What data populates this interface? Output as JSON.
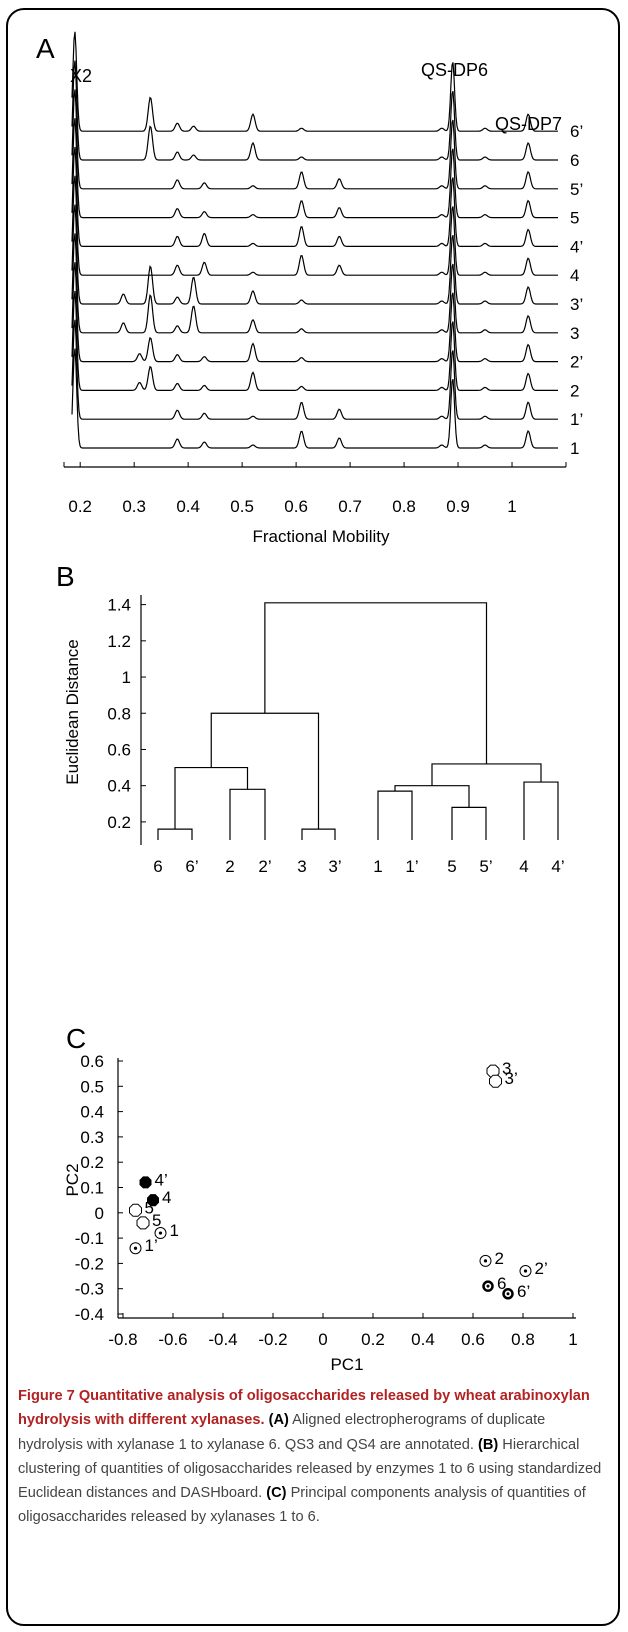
{
  "panel_a": {
    "label": "A",
    "peak_labels": {
      "x2": "X2",
      "qs_dp6": "QS-DP6",
      "qs_dp7": "QS-DP7"
    },
    "xlabel": "Fractional Mobility",
    "xticks": [
      "0.2",
      "0.3",
      "0.4",
      "0.5",
      "0.6",
      "0.7",
      "0.8",
      "0.9",
      "1"
    ]
  },
  "panel_b": {
    "label": "B",
    "ylabel": "Euclidean Distance",
    "yticks": [
      "0.2",
      "0.4",
      "0.6",
      "0.8",
      "1",
      "1.2",
      "1.4"
    ],
    "leaves": [
      "6",
      "6’",
      "2",
      "2’",
      "3",
      "3’",
      "1",
      "1’",
      "5",
      "5’",
      "4",
      "4’"
    ]
  },
  "panel_c": {
    "label": "C",
    "xlabel": "PC1",
    "ylabel": "PC2",
    "xticks": [
      "-0.8",
      "-0.6",
      "-0.4",
      "-0.2",
      "0",
      "0.2",
      "0.4",
      "0.6",
      "0.8",
      "1"
    ],
    "yticks": [
      "0.6",
      "0.5",
      "0.4",
      "0.3",
      "0.2",
      "0.1",
      "0",
      "-0.1",
      "-0.2",
      "-0.3",
      "-0.4"
    ]
  },
  "chart_data": [
    {
      "type": "line",
      "panel": "A",
      "xlabel": "Fractional Mobility",
      "xlim": [
        0.17,
        1.1
      ],
      "traces": [
        "1",
        "1’",
        "2",
        "2’",
        "3",
        "3’",
        "4",
        "4’",
        "5",
        "5’",
        "6",
        "6’"
      ],
      "peak_positions": {
        "X2": 0.19,
        "QS-DP6": 0.89,
        "QS-DP7": 1.03
      },
      "annotations": [
        "X2",
        "QS-DP6",
        "QS-DP7"
      ]
    },
    {
      "type": "dendrogram",
      "panel": "B",
      "ylabel": "Euclidean Distance",
      "ylim": [
        0.1,
        1.42
      ],
      "leaves": [
        "6",
        "6’",
        "2",
        "2’",
        "3",
        "3’",
        "1",
        "1’",
        "5",
        "5’",
        "4",
        "4’"
      ],
      "merges": [
        {
          "left": "6",
          "right": "6’",
          "height": 0.16
        },
        {
          "left": "2",
          "right": "2’",
          "height": 0.38
        },
        {
          "left": "3",
          "right": "3’",
          "height": 0.16
        },
        {
          "left": "6|6’",
          "right": "2|2’",
          "height": 0.5
        },
        {
          "left": "6|6’|2|2’",
          "right": "3|3’",
          "height": 0.8
        },
        {
          "left": "1",
          "right": "1’",
          "height": 0.37
        },
        {
          "left": "5",
          "right": "5’",
          "height": 0.28
        },
        {
          "left": "1|1’",
          "right": "5|5’",
          "height": 0.4
        },
        {
          "left": "4",
          "right": "4’",
          "height": 0.42
        },
        {
          "left": "1|1’|5|5’",
          "right": "4|4’",
          "height": 0.52
        },
        {
          "left": "A",
          "right": "B",
          "height": 1.41
        }
      ]
    },
    {
      "type": "scatter",
      "panel": "C",
      "xlabel": "PC1",
      "ylabel": "PC2",
      "xlim": [
        -0.82,
        1.0
      ],
      "ylim": [
        -0.4,
        0.6
      ],
      "points": [
        {
          "label": "3",
          "x": 0.68,
          "y": 0.56,
          "marker": "open"
        },
        {
          "label": "3’",
          "x": 0.69,
          "y": 0.52,
          "marker": "open"
        },
        {
          "label": "4’",
          "x": -0.71,
          "y": 0.12,
          "marker": "filled"
        },
        {
          "label": "4",
          "x": -0.68,
          "y": 0.05,
          "marker": "filled"
        },
        {
          "label": "5’",
          "x": -0.75,
          "y": 0.01,
          "marker": "open"
        },
        {
          "label": "5",
          "x": -0.72,
          "y": -0.04,
          "marker": "open"
        },
        {
          "label": "1",
          "x": -0.65,
          "y": -0.08,
          "marker": "dotted"
        },
        {
          "label": "1’",
          "x": -0.75,
          "y": -0.14,
          "marker": "dotted"
        },
        {
          "label": "2",
          "x": 0.65,
          "y": -0.19,
          "marker": "dotted"
        },
        {
          "label": "2’",
          "x": 0.81,
          "y": -0.23,
          "marker": "dotted"
        },
        {
          "label": "6",
          "x": 0.66,
          "y": -0.29,
          "marker": "bold-dotted"
        },
        {
          "label": "6’",
          "x": 0.74,
          "y": -0.32,
          "marker": "bold-dotted"
        }
      ]
    }
  ],
  "caption": {
    "title": "Figure 7 Quantitative analysis of oligosaccharides released by wheat arabinoxylan hydrolysis with different xylanases.",
    "a_label": "(A)",
    "a_text": " Aligned electropherograms of duplicate hydrolysis with xylanase 1 to xylanase 6. QS3 and QS4 are annotated. ",
    "b_label": "(B)",
    "b_text": " Hierarchical clustering of quantities of oligosaccharides released by enzymes 1 to 6 using standardized Euclidean distances and DASHboard. ",
    "c_label": "(C)",
    "c_text": " Principal components analysis of quantities of oligosaccharides released by xylanases 1 to 6."
  }
}
